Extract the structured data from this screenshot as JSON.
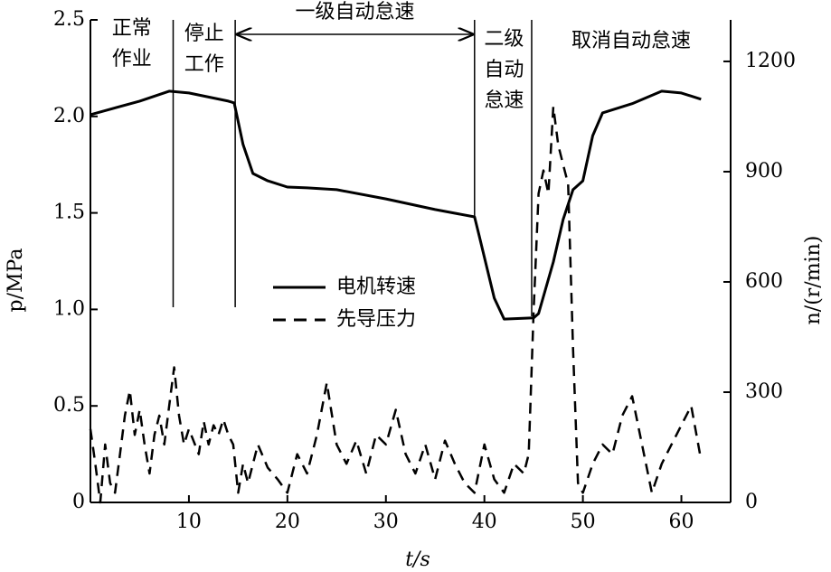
{
  "chart_data": {
    "type": "line",
    "xlabel": "t/s",
    "ylabel": "p/MPa",
    "y2label": "n/(r/min)",
    "xlim": [
      0,
      65
    ],
    "xticks": [
      10,
      20,
      30,
      40,
      50,
      60
    ],
    "ylim": [
      0,
      2.5
    ],
    "yticks": [
      0,
      0.5,
      {
        "value": 1,
        "label": "1.0"
      },
      1.5,
      {
        "value": 2,
        "label": "2.0"
      },
      2.5
    ],
    "y2lim": [
      0,
      1313
    ],
    "y2ticks": [
      0,
      300,
      600,
      900,
      1200
    ],
    "legend": "center",
    "series": [
      {
        "name": "电机转速",
        "color": "#000000",
        "line_style": "solid",
        "axis": "y2",
        "x": [
          0,
          5,
          8,
          10,
          14,
          14.6,
          15.5,
          16.5,
          18,
          20,
          22,
          25,
          30,
          35,
          39,
          39.5,
          41,
          42,
          45,
          45.5,
          47,
          48,
          49,
          50,
          51,
          52,
          55,
          58,
          60,
          62
        ],
        "values": [
          1055,
          1092,
          1119,
          1114,
          1092,
          1087,
          974,
          895,
          875,
          858,
          856,
          851,
          826,
          797,
          777,
          723,
          556,
          499,
          502,
          514,
          654,
          770,
          851,
          875,
          998,
          1060,
          1085,
          1119,
          1114,
          1097
        ]
      },
      {
        "name": "先导压力",
        "color": "#000000",
        "line_style": "dashed",
        "x": [
          0,
          0.5,
          1,
          1.5,
          2,
          2.5,
          3,
          3.5,
          4,
          4.5,
          5,
          5.5,
          6,
          6.5,
          7,
          7.5,
          8,
          8.5,
          9,
          9.5,
          10,
          11,
          11.5,
          12,
          12.5,
          13,
          13.5,
          14,
          14.5,
          15,
          15.5,
          16,
          17,
          18,
          19,
          20,
          21,
          22,
          23,
          24,
          25,
          26,
          27,
          28,
          29,
          30,
          31,
          32,
          33,
          34,
          35,
          36,
          37,
          38,
          39,
          40,
          41,
          42,
          43,
          44,
          44.5,
          45,
          45.5,
          46,
          46.5,
          47,
          47.5,
          48,
          48.5,
          49,
          49.5,
          50,
          51,
          52,
          53,
          54,
          55,
          56,
          57,
          58,
          59,
          60,
          61,
          62
        ],
        "values": [
          0.38,
          0.2,
          0,
          0.3,
          0.1,
          0.05,
          0.25,
          0.45,
          0.58,
          0.35,
          0.48,
          0.3,
          0.15,
          0.35,
          0.45,
          0.3,
          0.5,
          0.7,
          0.45,
          0.3,
          0.38,
          0.25,
          0.42,
          0.3,
          0.4,
          0.35,
          0.43,
          0.35,
          0.3,
          0.05,
          0.2,
          0.1,
          0.3,
          0.18,
          0.12,
          0.05,
          0.25,
          0.15,
          0.35,
          0.62,
          0.3,
          0.2,
          0.32,
          0.15,
          0.35,
          0.3,
          0.48,
          0.25,
          0.15,
          0.3,
          0.12,
          0.32,
          0.2,
          0.1,
          0.05,
          0.3,
          0.12,
          0.05,
          0.2,
          0.15,
          0.25,
          1.0,
          1.6,
          1.72,
          1.6,
          2.05,
          1.85,
          1.75,
          1.65,
          0.8,
          0.1,
          0.05,
          0.2,
          0.3,
          0.25,
          0.45,
          0.55,
          0.3,
          0.05,
          0.2,
          0.3,
          0.4,
          0.5,
          0.22
        ]
      }
    ],
    "phase_lines": [
      8.4,
      14.7,
      39,
      44.8
    ],
    "annotations": [
      {
        "text": [
          "正常",
          "作业"
        ]
      },
      {
        "text": [
          "停止",
          "工作"
        ]
      },
      {
        "text": [
          "一级自动怠速"
        ]
      },
      {
        "text": [
          "二级",
          "自动",
          "怠速"
        ]
      },
      {
        "text": [
          "取消自动怠速"
        ]
      }
    ]
  }
}
